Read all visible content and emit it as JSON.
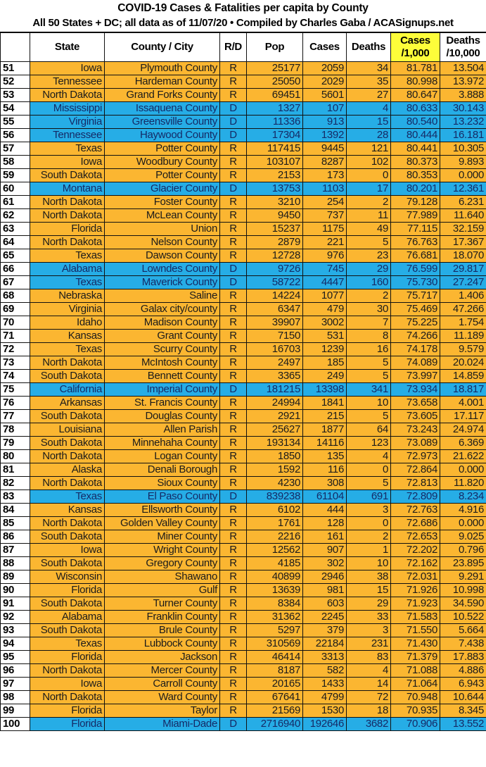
{
  "title": "COVID-19 Cases & Fatalities per capita by County",
  "subtitle": "All 50 States + DC; all data as of 11/07/20  • Compiled by Charles Gaba / ACASignups.net",
  "colors": {
    "republican": "#fbb631",
    "democrat": "#26ade6",
    "highlight": "#fdfd3a"
  },
  "headers": [
    "",
    "State",
    "County / City",
    "R/D",
    "Pop",
    "Cases",
    "Deaths",
    "Cases /1,000",
    "Deaths /10,000"
  ],
  "rows": [
    [
      "51",
      "Iowa",
      "Plymouth County",
      "R",
      "25177",
      "2059",
      "34",
      "81.781",
      "13.504"
    ],
    [
      "52",
      "Tennessee",
      "Hardeman County",
      "R",
      "25050",
      "2029",
      "35",
      "80.998",
      "13.972"
    ],
    [
      "53",
      "North Dakota",
      "Grand Forks County",
      "R",
      "69451",
      "5601",
      "27",
      "80.647",
      "3.888"
    ],
    [
      "54",
      "Mississippi",
      "Issaquena County",
      "D",
      "1327",
      "107",
      "4",
      "80.633",
      "30.143"
    ],
    [
      "55",
      "Virginia",
      "Greensville County",
      "D",
      "11336",
      "913",
      "15",
      "80.540",
      "13.232"
    ],
    [
      "56",
      "Tennessee",
      "Haywood County",
      "D",
      "17304",
      "1392",
      "28",
      "80.444",
      "16.181"
    ],
    [
      "57",
      "Texas",
      "Potter County",
      "R",
      "117415",
      "9445",
      "121",
      "80.441",
      "10.305"
    ],
    [
      "58",
      "Iowa",
      "Woodbury County",
      "R",
      "103107",
      "8287",
      "102",
      "80.373",
      "9.893"
    ],
    [
      "59",
      "South Dakota",
      "Potter County",
      "R",
      "2153",
      "173",
      "0",
      "80.353",
      "0.000"
    ],
    [
      "60",
      "Montana",
      "Glacier County",
      "D",
      "13753",
      "1103",
      "17",
      "80.201",
      "12.361"
    ],
    [
      "61",
      "North Dakota",
      "Foster County",
      "R",
      "3210",
      "254",
      "2",
      "79.128",
      "6.231"
    ],
    [
      "62",
      "North Dakota",
      "McLean County",
      "R",
      "9450",
      "737",
      "11",
      "77.989",
      "11.640"
    ],
    [
      "63",
      "Florida",
      "Union",
      "R",
      "15237",
      "1175",
      "49",
      "77.115",
      "32.159"
    ],
    [
      "64",
      "North Dakota",
      "Nelson County",
      "R",
      "2879",
      "221",
      "5",
      "76.763",
      "17.367"
    ],
    [
      "65",
      "Texas",
      "Dawson County",
      "R",
      "12728",
      "976",
      "23",
      "76.681",
      "18.070"
    ],
    [
      "66",
      "Alabama",
      "Lowndes County",
      "D",
      "9726",
      "745",
      "29",
      "76.599",
      "29.817"
    ],
    [
      "67",
      "Texas",
      "Maverick County",
      "D",
      "58722",
      "4447",
      "160",
      "75.730",
      "27.247"
    ],
    [
      "68",
      "Nebraska",
      "Saline",
      "R",
      "14224",
      "1077",
      "2",
      "75.717",
      "1.406"
    ],
    [
      "69",
      "Virginia",
      "Galax city/county",
      "R",
      "6347",
      "479",
      "30",
      "75.469",
      "47.266"
    ],
    [
      "70",
      "Idaho",
      "Madison County",
      "R",
      "39907",
      "3002",
      "7",
      "75.225",
      "1.754"
    ],
    [
      "71",
      "Kansas",
      "Grant County",
      "R",
      "7150",
      "531",
      "8",
      "74.266",
      "11.189"
    ],
    [
      "72",
      "Texas",
      "Scurry County",
      "R",
      "16703",
      "1239",
      "16",
      "74.178",
      "9.579"
    ],
    [
      "73",
      "North Dakota",
      "McIntosh County",
      "R",
      "2497",
      "185",
      "5",
      "74.089",
      "20.024"
    ],
    [
      "74",
      "South Dakota",
      "Bennett County",
      "R",
      "3365",
      "249",
      "5",
      "73.997",
      "14.859"
    ],
    [
      "75",
      "California",
      "Imperial County",
      "D",
      "181215",
      "13398",
      "341",
      "73.934",
      "18.817"
    ],
    [
      "76",
      "Arkansas",
      "St. Francis County",
      "R",
      "24994",
      "1841",
      "10",
      "73.658",
      "4.001"
    ],
    [
      "77",
      "South Dakota",
      "Douglas County",
      "R",
      "2921",
      "215",
      "5",
      "73.605",
      "17.117"
    ],
    [
      "78",
      "Louisiana",
      "Allen Parish",
      "R",
      "25627",
      "1877",
      "64",
      "73.243",
      "24.974"
    ],
    [
      "79",
      "South Dakota",
      "Minnehaha County",
      "R",
      "193134",
      "14116",
      "123",
      "73.089",
      "6.369"
    ],
    [
      "80",
      "North Dakota",
      "Logan County",
      "R",
      "1850",
      "135",
      "4",
      "72.973",
      "21.622"
    ],
    [
      "81",
      "Alaska",
      "Denali Borough",
      "R",
      "1592",
      "116",
      "0",
      "72.864",
      "0.000"
    ],
    [
      "82",
      "North Dakota",
      "Sioux County",
      "R",
      "4230",
      "308",
      "5",
      "72.813",
      "11.820"
    ],
    [
      "83",
      "Texas",
      "El Paso County",
      "D",
      "839238",
      "61104",
      "691",
      "72.809",
      "8.234"
    ],
    [
      "84",
      "Kansas",
      "Ellsworth County",
      "R",
      "6102",
      "444",
      "3",
      "72.763",
      "4.916"
    ],
    [
      "85",
      "North Dakota",
      "Golden Valley County",
      "R",
      "1761",
      "128",
      "0",
      "72.686",
      "0.000"
    ],
    [
      "86",
      "South Dakota",
      "Miner County",
      "R",
      "2216",
      "161",
      "2",
      "72.653",
      "9.025"
    ],
    [
      "87",
      "Iowa",
      "Wright County",
      "R",
      "12562",
      "907",
      "1",
      "72.202",
      "0.796"
    ],
    [
      "88",
      "South Dakota",
      "Gregory County",
      "R",
      "4185",
      "302",
      "10",
      "72.162",
      "23.895"
    ],
    [
      "89",
      "Wisconsin",
      "Shawano",
      "R",
      "40899",
      "2946",
      "38",
      "72.031",
      "9.291"
    ],
    [
      "90",
      "Florida",
      "Gulf",
      "R",
      "13639",
      "981",
      "15",
      "71.926",
      "10.998"
    ],
    [
      "91",
      "South Dakota",
      "Turner County",
      "R",
      "8384",
      "603",
      "29",
      "71.923",
      "34.590"
    ],
    [
      "92",
      "Alabama",
      "Franklin County",
      "R",
      "31362",
      "2245",
      "33",
      "71.583",
      "10.522"
    ],
    [
      "93",
      "South Dakota",
      "Brule County",
      "R",
      "5297",
      "379",
      "3",
      "71.550",
      "5.664"
    ],
    [
      "94",
      "Texas",
      "Lubbock County",
      "R",
      "310569",
      "22184",
      "231",
      "71.430",
      "7.438"
    ],
    [
      "95",
      "Florida",
      "Jackson",
      "R",
      "46414",
      "3313",
      "83",
      "71.379",
      "17.883"
    ],
    [
      "96",
      "North Dakota",
      "Mercer County",
      "R",
      "8187",
      "582",
      "4",
      "71.088",
      "4.886"
    ],
    [
      "97",
      "Iowa",
      "Carroll County",
      "R",
      "20165",
      "1433",
      "14",
      "71.064",
      "6.943"
    ],
    [
      "98",
      "North Dakota",
      "Ward County",
      "R",
      "67641",
      "4799",
      "72",
      "70.948",
      "10.644"
    ],
    [
      "99",
      "Florida",
      "Taylor",
      "R",
      "21569",
      "1530",
      "18",
      "70.935",
      "8.345"
    ],
    [
      "100",
      "Florida",
      "Miami-Dade",
      "D",
      "2716940",
      "192646",
      "3682",
      "70.906",
      "13.552"
    ]
  ]
}
